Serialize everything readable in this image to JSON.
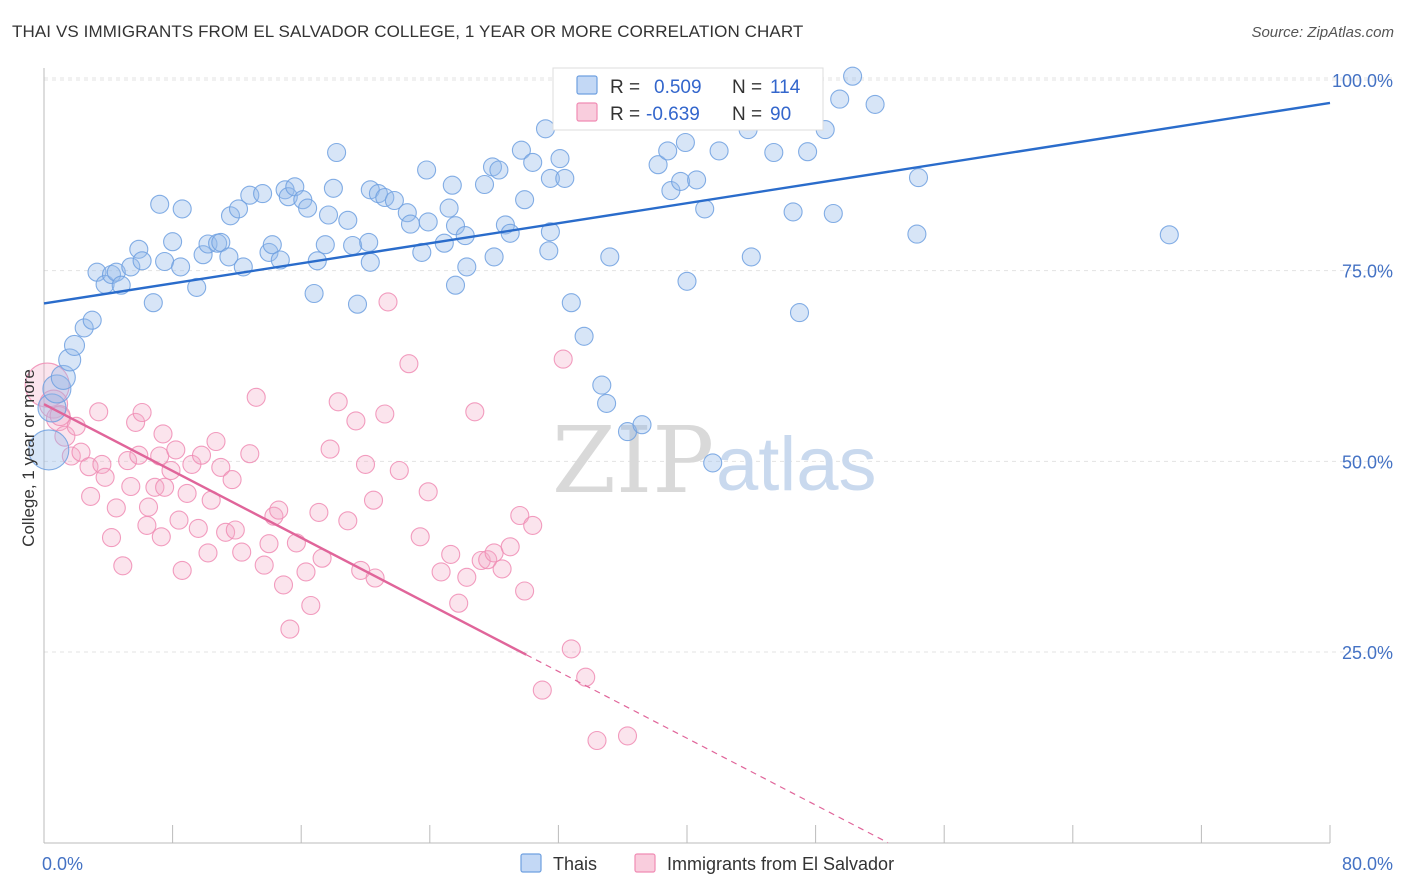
{
  "header": {
    "title": "THAI VS IMMIGRANTS FROM EL SALVADOR COLLEGE, 1 YEAR OR MORE CORRELATION CHART",
    "source": "Source: ZipAtlas.com"
  },
  "watermark": {
    "part1": "ZIP",
    "part2": "atlas"
  },
  "legend_box": {
    "rows": [
      {
        "r_label": "R =",
        "r_value": "0.509",
        "n_label": "N =",
        "n_value": "114",
        "color": "#aac8f0"
      },
      {
        "r_label": "R =",
        "r_value": "-0.639",
        "n_label": "N =",
        "n_value": "90",
        "color": "#f6b8cf"
      }
    ]
  },
  "chart_data": {
    "type": "scatter",
    "title": "THAI VS IMMIGRANTS FROM EL SALVADOR COLLEGE, 1 YEAR OR MORE CORRELATION CHART",
    "xlabel": "",
    "ylabel": "College, 1 year or more",
    "xlim": [
      0,
      80
    ],
    "ylim": [
      0,
      105
    ],
    "x_tick_labels": [
      "0.0%",
      "80.0%"
    ],
    "y_ticks": [
      25,
      50,
      75,
      100
    ],
    "y_tick_labels": [
      "25.0%",
      "50.0%",
      "75.0%",
      "100.0%"
    ],
    "grid": true,
    "legend_position": "bottom-center",
    "series": [
      {
        "name": "Thais",
        "color": "#6fa0e0",
        "line_color": "#2a6ccb",
        "trend": {
          "x": [
            0,
            80
          ],
          "y": [
            70.7,
            97.0
          ],
          "dashed_from": null
        },
        "points": [
          [
            0.3,
            51.5,
            20
          ],
          [
            0.5,
            57,
            14
          ],
          [
            0.8,
            59.5,
            14
          ],
          [
            1.2,
            61,
            12
          ],
          [
            1.6,
            63.3,
            11
          ],
          [
            1.9,
            65.2,
            10
          ],
          [
            2.5,
            67.5,
            9
          ],
          [
            3.0,
            68.5,
            9
          ],
          [
            3.3,
            74.8,
            9
          ],
          [
            3.8,
            73.2,
            9
          ],
          [
            4.2,
            74.5,
            9
          ],
          [
            4.5,
            74.8,
            9
          ],
          [
            4.8,
            73.1,
            9
          ],
          [
            5.4,
            75.5,
            9
          ],
          [
            5.9,
            77.8,
            9
          ],
          [
            6.1,
            76.3,
            9
          ],
          [
            7.2,
            83.7,
            9
          ],
          [
            6.8,
            70.8,
            9
          ],
          [
            7.5,
            76.2,
            9
          ],
          [
            8.0,
            78.8,
            9
          ],
          [
            8.6,
            83.1,
            9
          ],
          [
            8.5,
            75.5,
            9
          ],
          [
            9.5,
            72.8,
            9
          ],
          [
            9.9,
            77.1,
            9
          ],
          [
            10.2,
            78.5,
            9
          ],
          [
            10.8,
            78.6,
            9
          ],
          [
            11.0,
            78.7,
            9
          ],
          [
            11.5,
            76.8,
            9
          ],
          [
            11.6,
            82.2,
            9
          ],
          [
            12.1,
            83.1,
            9
          ],
          [
            12.4,
            75.5,
            9
          ],
          [
            12.8,
            84.9,
            9
          ],
          [
            13.6,
            85.1,
            9
          ],
          [
            14.0,
            77.4,
            9
          ],
          [
            14.2,
            78.4,
            9
          ],
          [
            14.7,
            76.4,
            9
          ],
          [
            15.0,
            85.6,
            9
          ],
          [
            15.2,
            84.7,
            9
          ],
          [
            15.6,
            86.0,
            9
          ],
          [
            16.1,
            84.3,
            9
          ],
          [
            16.4,
            83.2,
            9
          ],
          [
            16.8,
            72.0,
            9
          ],
          [
            17.0,
            76.3,
            9
          ],
          [
            17.5,
            78.4,
            9
          ],
          [
            17.7,
            82.3,
            9
          ],
          [
            18.0,
            85.8,
            9
          ],
          [
            18.2,
            90.5,
            9
          ],
          [
            18.9,
            81.6,
            9
          ],
          [
            19.2,
            78.3,
            9
          ],
          [
            19.5,
            70.6,
            9
          ],
          [
            20.2,
            78.7,
            9
          ],
          [
            20.3,
            76.1,
            9
          ],
          [
            20.3,
            85.6,
            9
          ],
          [
            20.8,
            85.1,
            9
          ],
          [
            21.2,
            84.6,
            9
          ],
          [
            21.8,
            84.2,
            9
          ],
          [
            22.6,
            82.6,
            9
          ],
          [
            22.8,
            81.1,
            9
          ],
          [
            23.5,
            77.4,
            9
          ],
          [
            23.9,
            81.4,
            9
          ],
          [
            23.8,
            88.2,
            9
          ],
          [
            24.9,
            78.6,
            9
          ],
          [
            25.2,
            83.2,
            9
          ],
          [
            25.4,
            86.2,
            9
          ],
          [
            25.6,
            80.9,
            9
          ],
          [
            25.6,
            73.1,
            9
          ],
          [
            26.2,
            79.6,
            9
          ],
          [
            26.3,
            75.5,
            9
          ],
          [
            27.4,
            86.3,
            9
          ],
          [
            27.9,
            88.6,
            9
          ],
          [
            28.0,
            76.8,
            9
          ],
          [
            28.3,
            88.2,
            9
          ],
          [
            28.7,
            81.0,
            9
          ],
          [
            29.0,
            79.9,
            9
          ],
          [
            29.7,
            90.8,
            9
          ],
          [
            29.9,
            84.3,
            9
          ],
          [
            30.4,
            89.2,
            9
          ],
          [
            31.2,
            93.6,
            9
          ],
          [
            31.5,
            80.1,
            9
          ],
          [
            31.4,
            77.6,
            9
          ],
          [
            31.5,
            87.1,
            9
          ],
          [
            32.1,
            89.7,
            9
          ],
          [
            32.4,
            87.1,
            9
          ],
          [
            32.8,
            70.8,
            9
          ],
          [
            33.6,
            66.4,
            9
          ],
          [
            34.7,
            60.0,
            9
          ],
          [
            35.0,
            57.6,
            9
          ],
          [
            35.2,
            76.8,
            9
          ],
          [
            36.3,
            53.9,
            9
          ],
          [
            37.2,
            54.8,
            9
          ],
          [
            38.2,
            88.9,
            9
          ],
          [
            38.8,
            90.7,
            9
          ],
          [
            39.0,
            85.5,
            9
          ],
          [
            39.6,
            86.7,
            9
          ],
          [
            39.9,
            91.8,
            9
          ],
          [
            40.0,
            73.6,
            9
          ],
          [
            40.6,
            86.9,
            9
          ],
          [
            41.1,
            83.1,
            9
          ],
          [
            41.6,
            49.8,
            9
          ],
          [
            41.8,
            94.8,
            9
          ],
          [
            42.0,
            90.7,
            9
          ],
          [
            43.8,
            93.5,
            9
          ],
          [
            44.0,
            76.8,
            9
          ],
          [
            45.4,
            90.5,
            9
          ],
          [
            46.6,
            82.7,
            9
          ],
          [
            47.0,
            69.5,
            9
          ],
          [
            47.5,
            90.6,
            9
          ],
          [
            48.6,
            93.5,
            9
          ],
          [
            49.1,
            82.5,
            9
          ],
          [
            49.5,
            97.5,
            9
          ],
          [
            50.3,
            100.5,
            9
          ],
          [
            51.7,
            96.8,
            9
          ],
          [
            54.3,
            79.8,
            9
          ],
          [
            54.4,
            87.2,
            9
          ],
          [
            70.0,
            79.7,
            9
          ]
        ]
      },
      {
        "name": "Immigrants from El Salvador",
        "color": "#f08cb4",
        "line_color": "#e0659a",
        "trend": {
          "x": [
            0,
            52.5
          ],
          "y": [
            57.5,
            0.0
          ],
          "solid_to_x": 30.0
        },
        "points": [
          [
            0.2,
            60,
            22
          ],
          [
            0.6,
            57.5,
            14
          ],
          [
            0.9,
            55.6,
            12
          ],
          [
            1.0,
            56.0,
            10
          ],
          [
            1.3,
            53.3,
            10
          ],
          [
            1.7,
            50.7,
            9
          ],
          [
            2.0,
            54.6,
            9
          ],
          [
            2.3,
            51.2,
            9
          ],
          [
            2.8,
            49.3,
            9
          ],
          [
            2.9,
            45.4,
            9
          ],
          [
            3.4,
            56.5,
            9
          ],
          [
            3.6,
            49.6,
            9
          ],
          [
            3.8,
            47.9,
            9
          ],
          [
            4.2,
            40.0,
            9
          ],
          [
            4.5,
            43.9,
            9
          ],
          [
            4.9,
            36.3,
            9
          ],
          [
            5.2,
            50.1,
            9
          ],
          [
            5.4,
            46.7,
            9
          ],
          [
            5.7,
            55.1,
            9
          ],
          [
            5.9,
            50.8,
            9
          ],
          [
            6.1,
            56.4,
            9
          ],
          [
            6.4,
            41.6,
            9
          ],
          [
            6.5,
            44.0,
            9
          ],
          [
            6.9,
            46.6,
            9
          ],
          [
            7.2,
            50.7,
            9
          ],
          [
            7.4,
            53.6,
            9
          ],
          [
            7.3,
            40.1,
            9
          ],
          [
            7.5,
            46.6,
            9
          ],
          [
            7.9,
            48.8,
            9
          ],
          [
            8.2,
            51.5,
            9
          ],
          [
            8.4,
            42.3,
            9
          ],
          [
            8.6,
            35.7,
            9
          ],
          [
            8.9,
            45.8,
            9
          ],
          [
            9.2,
            49.6,
            9
          ],
          [
            9.6,
            41.2,
            9
          ],
          [
            9.8,
            50.8,
            9
          ],
          [
            10.2,
            38.0,
            9
          ],
          [
            10.4,
            44.9,
            9
          ],
          [
            10.7,
            52.6,
            9
          ],
          [
            11.0,
            49.2,
            9
          ],
          [
            11.3,
            40.7,
            9
          ],
          [
            11.7,
            47.6,
            9
          ],
          [
            11.9,
            41.0,
            9
          ],
          [
            12.3,
            38.1,
            9
          ],
          [
            12.8,
            51.0,
            9
          ],
          [
            13.2,
            58.4,
            9
          ],
          [
            13.7,
            36.4,
            9
          ],
          [
            14.0,
            39.2,
            9
          ],
          [
            14.3,
            42.8,
            9
          ],
          [
            14.6,
            43.6,
            9
          ],
          [
            14.9,
            33.8,
            9
          ],
          [
            15.3,
            28.0,
            9
          ],
          [
            15.7,
            39.3,
            9
          ],
          [
            16.3,
            35.5,
            9
          ],
          [
            16.6,
            31.1,
            9
          ],
          [
            17.1,
            43.3,
            9
          ],
          [
            17.3,
            37.3,
            9
          ],
          [
            17.8,
            51.6,
            9
          ],
          [
            18.3,
            57.8,
            9
          ],
          [
            18.9,
            42.2,
            9
          ],
          [
            19.4,
            55.3,
            9
          ],
          [
            19.7,
            35.7,
            9
          ],
          [
            20.0,
            49.6,
            9
          ],
          [
            20.5,
            44.9,
            9
          ],
          [
            20.6,
            34.7,
            9
          ],
          [
            21.2,
            56.2,
            9
          ],
          [
            21.4,
            70.9,
            9
          ],
          [
            22.1,
            48.8,
            9
          ],
          [
            22.7,
            62.8,
            9
          ],
          [
            23.4,
            40.1,
            9
          ],
          [
            23.9,
            46.0,
            9
          ],
          [
            24.7,
            35.5,
            9
          ],
          [
            25.3,
            37.8,
            9
          ],
          [
            25.8,
            31.4,
            9
          ],
          [
            26.3,
            34.8,
            9
          ],
          [
            26.8,
            56.5,
            9
          ],
          [
            27.2,
            37.0,
            9
          ],
          [
            27.6,
            37.1,
            9
          ],
          [
            28.0,
            38.0,
            9
          ],
          [
            28.5,
            35.9,
            9
          ],
          [
            29.0,
            38.8,
            9
          ],
          [
            29.6,
            42.9,
            9
          ],
          [
            29.9,
            33.0,
            9
          ],
          [
            30.4,
            41.6,
            9
          ],
          [
            31.0,
            20.0,
            9
          ],
          [
            32.3,
            63.4,
            9
          ],
          [
            32.8,
            25.4,
            9
          ],
          [
            33.7,
            21.7,
            9
          ],
          [
            34.4,
            13.4,
            9
          ],
          [
            36.3,
            14.0,
            9
          ]
        ]
      }
    ]
  }
}
